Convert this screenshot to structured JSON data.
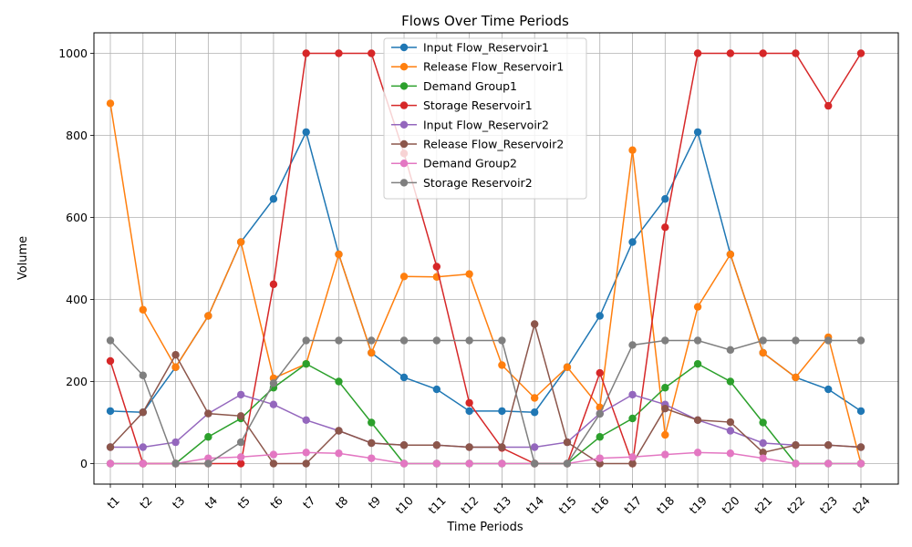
{
  "chart_data": {
    "type": "line",
    "title": "Flows Over Time Periods",
    "xlabel": "Time Periods",
    "ylabel": "Volume",
    "categories": [
      "t1",
      "t2",
      "t3",
      "t4",
      "t5",
      "t6",
      "t7",
      "t8",
      "t9",
      "t10",
      "t11",
      "t12",
      "t13",
      "t14",
      "t15",
      "t16",
      "t17",
      "t18",
      "t19",
      "t20",
      "t21",
      "t22",
      "t23",
      "t24"
    ],
    "ylim": [
      -50,
      1050
    ],
    "yticks": [
      0,
      200,
      400,
      600,
      800,
      1000
    ],
    "grid": true,
    "legend_position": "top-center",
    "series": [
      {
        "name": "Input Flow_Reservoir1",
        "color": "#1f77b4",
        "values": [
          128,
          125,
          235,
          360,
          540,
          645,
          808,
          510,
          270,
          210,
          181,
          128,
          128,
          125,
          235,
          360,
          540,
          645,
          808,
          510,
          270,
          210,
          181,
          128
        ]
      },
      {
        "name": "Release Flow_Reservoir1",
        "color": "#ff7f0e",
        "values": [
          878,
          375,
          235,
          360,
          540,
          208,
          243,
          510,
          270,
          456,
          455,
          462,
          240,
          160,
          235,
          137,
          764,
          70,
          382,
          510,
          270,
          210,
          308,
          0
        ]
      },
      {
        "name": "Demand Group1",
        "color": "#2ca02c",
        "values": [
          0,
          0,
          0,
          65,
          110,
          185,
          243,
          200,
          100,
          0,
          0,
          0,
          0,
          0,
          0,
          65,
          110,
          185,
          243,
          200,
          100,
          0,
          0,
          0
        ]
      },
      {
        "name": "Storage Reservoir1",
        "color": "#d62728",
        "values": [
          250,
          0,
          0,
          0,
          0,
          437,
          1000,
          1000,
          1000,
          756,
          480,
          148,
          38,
          0,
          0,
          221,
          0,
          576,
          1000,
          1000,
          1000,
          1000,
          872,
          1000
        ]
      },
      {
        "name": "Input Flow_Reservoir2",
        "color": "#9467bd",
        "values": [
          40,
          40,
          52,
          122,
          168,
          144,
          106,
          80,
          50,
          45,
          45,
          40,
          40,
          40,
          52,
          122,
          168,
          144,
          106,
          80,
          50,
          45,
          45,
          40
        ]
      },
      {
        "name": "Release Flow_Reservoir2",
        "color": "#8c564b",
        "values": [
          40,
          125,
          265,
          122,
          116,
          0,
          0,
          80,
          50,
          45,
          45,
          40,
          40,
          340,
          52,
          0,
          0,
          134,
          106,
          101,
          27,
          45,
          45,
          40
        ]
      },
      {
        "name": "Demand Group2",
        "color": "#e377c2",
        "values": [
          0,
          0,
          0,
          13,
          16,
          22,
          27,
          25,
          13,
          0,
          0,
          0,
          0,
          0,
          0,
          13,
          16,
          22,
          27,
          25,
          13,
          0,
          0,
          0
        ]
      },
      {
        "name": "Storage Reservoir2",
        "color": "#7f7f7f",
        "values": [
          300,
          215,
          0,
          0,
          52,
          196,
          300,
          300,
          300,
          300,
          300,
          300,
          300,
          0,
          0,
          121,
          289,
          300,
          300,
          277,
          300,
          300,
          300,
          300
        ]
      }
    ]
  }
}
